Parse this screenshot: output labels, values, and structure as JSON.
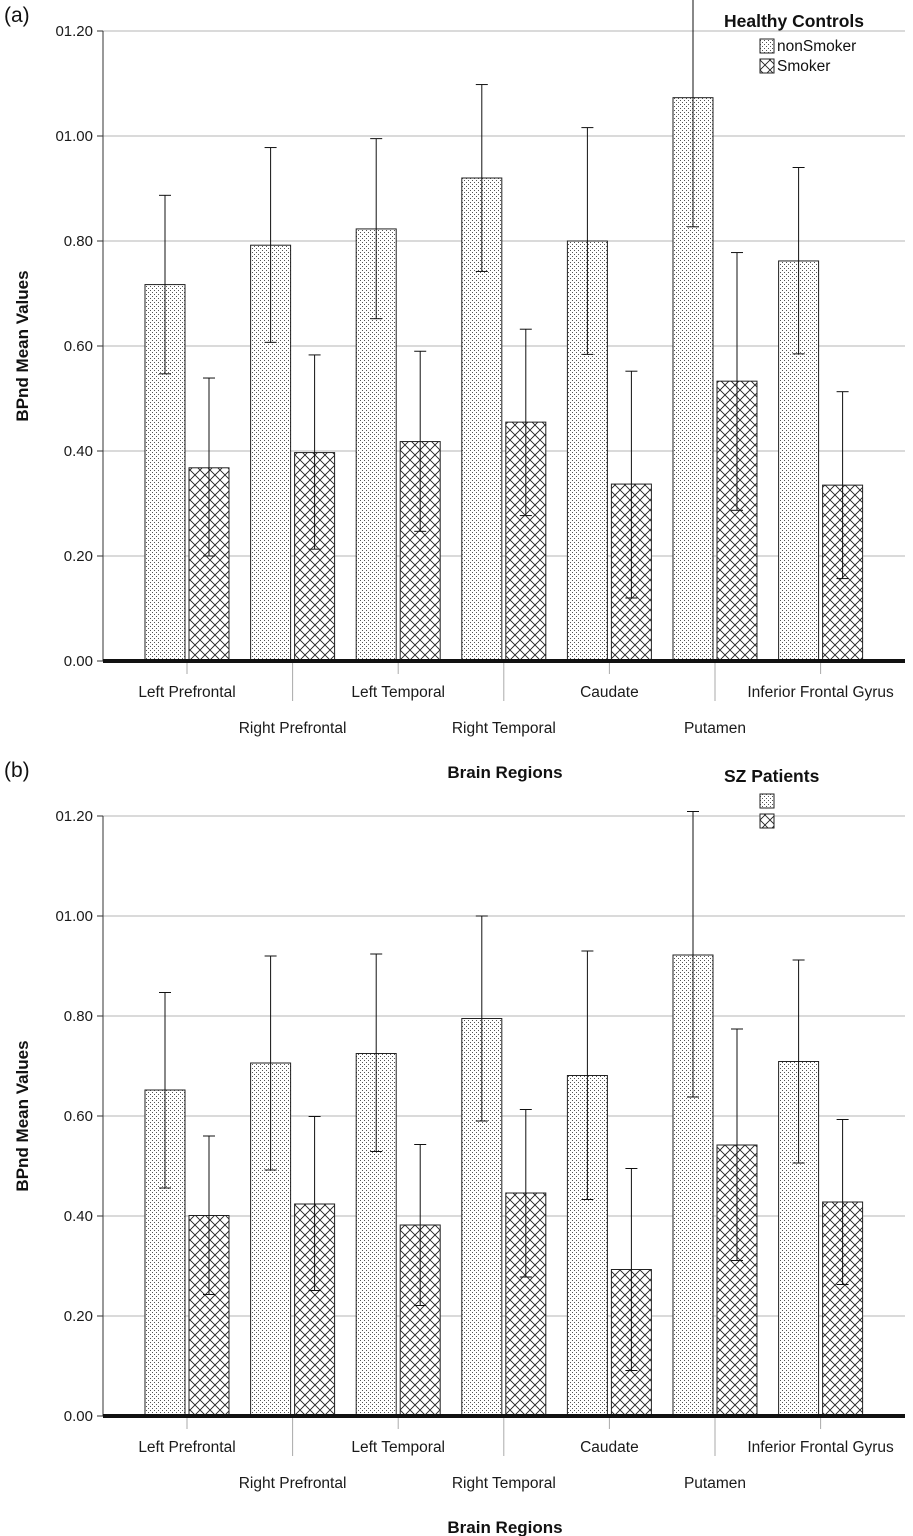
{
  "chart_data": [
    {
      "type": "bar",
      "panel_label": "(a)",
      "title": "",
      "xlabel": "Brain Regions",
      "ylabel": "BPnd Mean Values",
      "ylim": [
        0,
        1.2
      ],
      "yticks": [
        "0.00",
        "0.20",
        "0.40",
        "0.60",
        "0.80",
        "01.00",
        "01.20"
      ],
      "grid": true,
      "legend": {
        "title": "Healthy Controls",
        "position": "top-right"
      },
      "categories": [
        "Left Prefrontal",
        "Right Prefrontal",
        "Left Temporal",
        "Right Temporal",
        "Caudate",
        "Putamen",
        "Inferior Frontal Gyrus"
      ],
      "series": [
        {
          "name": "nonSmoker",
          "pattern": "dots",
          "values": [
            0.717,
            0.792,
            0.823,
            0.92,
            0.8,
            1.073,
            0.762
          ],
          "error_low": [
            0.547,
            0.607,
            0.652,
            0.742,
            0.584,
            0.827,
            0.585
          ],
          "error_high": [
            0.887,
            0.978,
            0.995,
            1.098,
            1.016,
            1.266,
            0.94
          ]
        },
        {
          "name": "Smoker",
          "pattern": "crosshatch",
          "values": [
            0.368,
            0.397,
            0.418,
            0.455,
            0.337,
            0.533,
            0.335
          ],
          "error_low": [
            0.2,
            0.213,
            0.247,
            0.277,
            0.12,
            0.287,
            0.157
          ],
          "error_high": [
            0.539,
            0.583,
            0.59,
            0.632,
            0.552,
            0.778,
            0.513
          ]
        }
      ]
    },
    {
      "type": "bar",
      "panel_label": "(b)",
      "title": "",
      "xlabel": "Brain Regions",
      "ylabel": "BPnd Mean Values",
      "ylim": [
        0,
        1.2
      ],
      "yticks": [
        "0.00",
        "0.20",
        "0.40",
        "0.60",
        "0.80",
        "01.00",
        "01.20"
      ],
      "grid": true,
      "legend": {
        "title": "SZ Patients",
        "position": "top-right"
      },
      "categories": [
        "Left Prefrontal",
        "Right Prefrontal",
        "Left Temporal",
        "Right Temporal",
        "Caudate",
        "Putamen",
        "Inferior Frontal Gyrus"
      ],
      "series": [
        {
          "name": "",
          "pattern": "dots",
          "values": [
            0.652,
            0.706,
            0.725,
            0.795,
            0.681,
            0.922,
            0.709
          ],
          "error_low": [
            0.456,
            0.492,
            0.529,
            0.59,
            0.433,
            0.638,
            0.506
          ],
          "error_high": [
            0.847,
            0.92,
            0.924,
            1.0,
            0.93,
            1.209,
            0.912
          ]
        },
        {
          "name": "",
          "pattern": "crosshatch",
          "values": [
            0.401,
            0.424,
            0.382,
            0.446,
            0.293,
            0.542,
            0.428
          ],
          "error_low": [
            0.243,
            0.251,
            0.221,
            0.278,
            0.091,
            0.311,
            0.263
          ],
          "error_high": [
            0.56,
            0.599,
            0.543,
            0.613,
            0.495,
            0.774,
            0.593
          ]
        }
      ]
    }
  ]
}
